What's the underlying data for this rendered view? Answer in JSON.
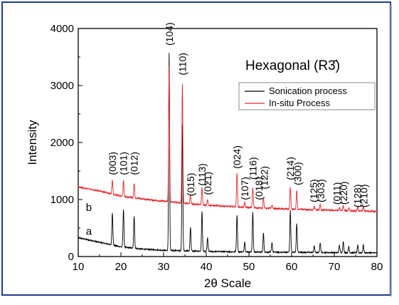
{
  "chart_data": {
    "type": "line",
    "title": "",
    "xlabel": "2θ Scale",
    "ylabel": "Intensity",
    "xlim": [
      10,
      80
    ],
    "ylim": [
      0,
      4000
    ],
    "x_ticks": [
      "10",
      "20",
      "30",
      "40",
      "50",
      "60",
      "70",
      "80"
    ],
    "y_ticks": [
      "0",
      "1000",
      "2000",
      "3000",
      "4000"
    ],
    "annotation": "Hexagonal (R3̄)",
    "grid": false,
    "legend_position": "upper-right",
    "colors": {
      "frame": "#1f3a93",
      "sonication": "#000000",
      "insitu": "#e8262b"
    },
    "curve_labels": [
      {
        "text": "a",
        "x": 11.8,
        "y": 380
      },
      {
        "text": "b",
        "x": 11.8,
        "y": 800
      }
    ],
    "series": [
      {
        "name": "Sonication process",
        "color": "#000000",
        "baseline": [
          [
            10,
            330
          ],
          [
            15,
            250
          ],
          [
            20,
            170
          ],
          [
            25,
            130
          ],
          [
            30,
            110
          ],
          [
            40,
            90
          ],
          [
            50,
            80
          ],
          [
            60,
            75
          ],
          [
            70,
            70
          ],
          [
            80,
            65
          ]
        ],
        "peaks": [
          {
            "x": 18.0,
            "height": 570
          },
          {
            "x": 20.6,
            "height": 670
          },
          {
            "x": 23.1,
            "height": 570
          },
          {
            "x": 31.3,
            "height": 3470
          },
          {
            "x": 34.4,
            "height": 2220
          },
          {
            "x": 36.3,
            "height": 420
          },
          {
            "x": 39.0,
            "height": 700
          },
          {
            "x": 40.3,
            "height": 240
          },
          {
            "x": 47.2,
            "height": 650
          },
          {
            "x": 49.0,
            "height": 180
          },
          {
            "x": 50.9,
            "height": 700
          },
          {
            "x": 53.4,
            "height": 330
          },
          {
            "x": 55.4,
            "height": 170
          },
          {
            "x": 59.7,
            "height": 730
          },
          {
            "x": 61.2,
            "height": 500
          },
          {
            "x": 65.3,
            "height": 110
          },
          {
            "x": 66.7,
            "height": 170
          },
          {
            "x": 71.2,
            "height": 130
          },
          {
            "x": 72.1,
            "height": 200
          },
          {
            "x": 73.4,
            "height": 110
          },
          {
            "x": 75.5,
            "height": 130
          },
          {
            "x": 76.8,
            "height": 140
          }
        ]
      },
      {
        "name": "In-situ Process",
        "color": "#e8262b",
        "baseline": [
          [
            10,
            1220
          ],
          [
            15,
            1150
          ],
          [
            20,
            1060
          ],
          [
            25,
            1010
          ],
          [
            30,
            970
          ],
          [
            40,
            900
          ],
          [
            50,
            860
          ],
          [
            60,
            830
          ],
          [
            70,
            810
          ],
          [
            80,
            790
          ]
        ],
        "peaks": [
          {
            "x": 18.0,
            "height": 250
          },
          {
            "x": 20.6,
            "height": 270
          },
          {
            "x": 23.1,
            "height": 260
          },
          {
            "x": 31.3,
            "height": 2400
          },
          {
            "x": 34.4,
            "height": 2100
          },
          {
            "x": 36.3,
            "height": 170
          },
          {
            "x": 39.0,
            "height": 300
          },
          {
            "x": 40.3,
            "height": 110
          },
          {
            "x": 47.2,
            "height": 600
          },
          {
            "x": 49.0,
            "height": 80
          },
          {
            "x": 50.9,
            "height": 350
          },
          {
            "x": 53.4,
            "height": 170
          },
          {
            "x": 55.4,
            "height": 60
          },
          {
            "x": 59.7,
            "height": 380
          },
          {
            "x": 61.2,
            "height": 330
          },
          {
            "x": 65.3,
            "height": 60
          },
          {
            "x": 66.7,
            "height": 100
          },
          {
            "x": 71.2,
            "height": 50
          },
          {
            "x": 72.1,
            "height": 90
          },
          {
            "x": 73.4,
            "height": 50
          },
          {
            "x": 75.5,
            "height": 70
          },
          {
            "x": 76.8,
            "height": 80
          }
        ]
      }
    ],
    "peak_labels": [
      {
        "text": "(003)",
        "x": 18.0,
        "y": 1430
      },
      {
        "text": "(101)",
        "x": 20.6,
        "y": 1430
      },
      {
        "text": "(012)",
        "x": 23.1,
        "y": 1430
      },
      {
        "text": "(104)",
        "x": 31.3,
        "y": 3700
      },
      {
        "text": "(110)",
        "x": 34.4,
        "y": 3180
      },
      {
        "text": "(015)",
        "x": 36.3,
        "y": 1060
      },
      {
        "text": "(113)",
        "x": 39.0,
        "y": 1240
      },
      {
        "text": "(021)",
        "x": 40.3,
        "y": 1080
      },
      {
        "text": "(024)",
        "x": 47.2,
        "y": 1540
      },
      {
        "text": "(107)",
        "x": 49.0,
        "y": 990
      },
      {
        "text": "(116)",
        "x": 50.9,
        "y": 1350
      },
      {
        "text": "(018)",
        "x": 52.3,
        "y": 990
      },
      {
        "text": "(122)",
        "x": 53.6,
        "y": 1180
      },
      {
        "text": "(214)",
        "x": 59.7,
        "y": 1340
      },
      {
        "text": "(300)",
        "x": 61.4,
        "y": 1250
      },
      {
        "text": "(125)",
        "x": 65.2,
        "y": 950
      },
      {
        "text": "(303)",
        "x": 66.8,
        "y": 950
      },
      {
        "text": "(011)",
        "x": 70.6,
        "y": 910
      },
      {
        "text": "(220)",
        "x": 72.2,
        "y": 910
      },
      {
        "text": "(128)",
        "x": 75.4,
        "y": 860
      },
      {
        "text": "(210)",
        "x": 76.9,
        "y": 860
      }
    ]
  }
}
